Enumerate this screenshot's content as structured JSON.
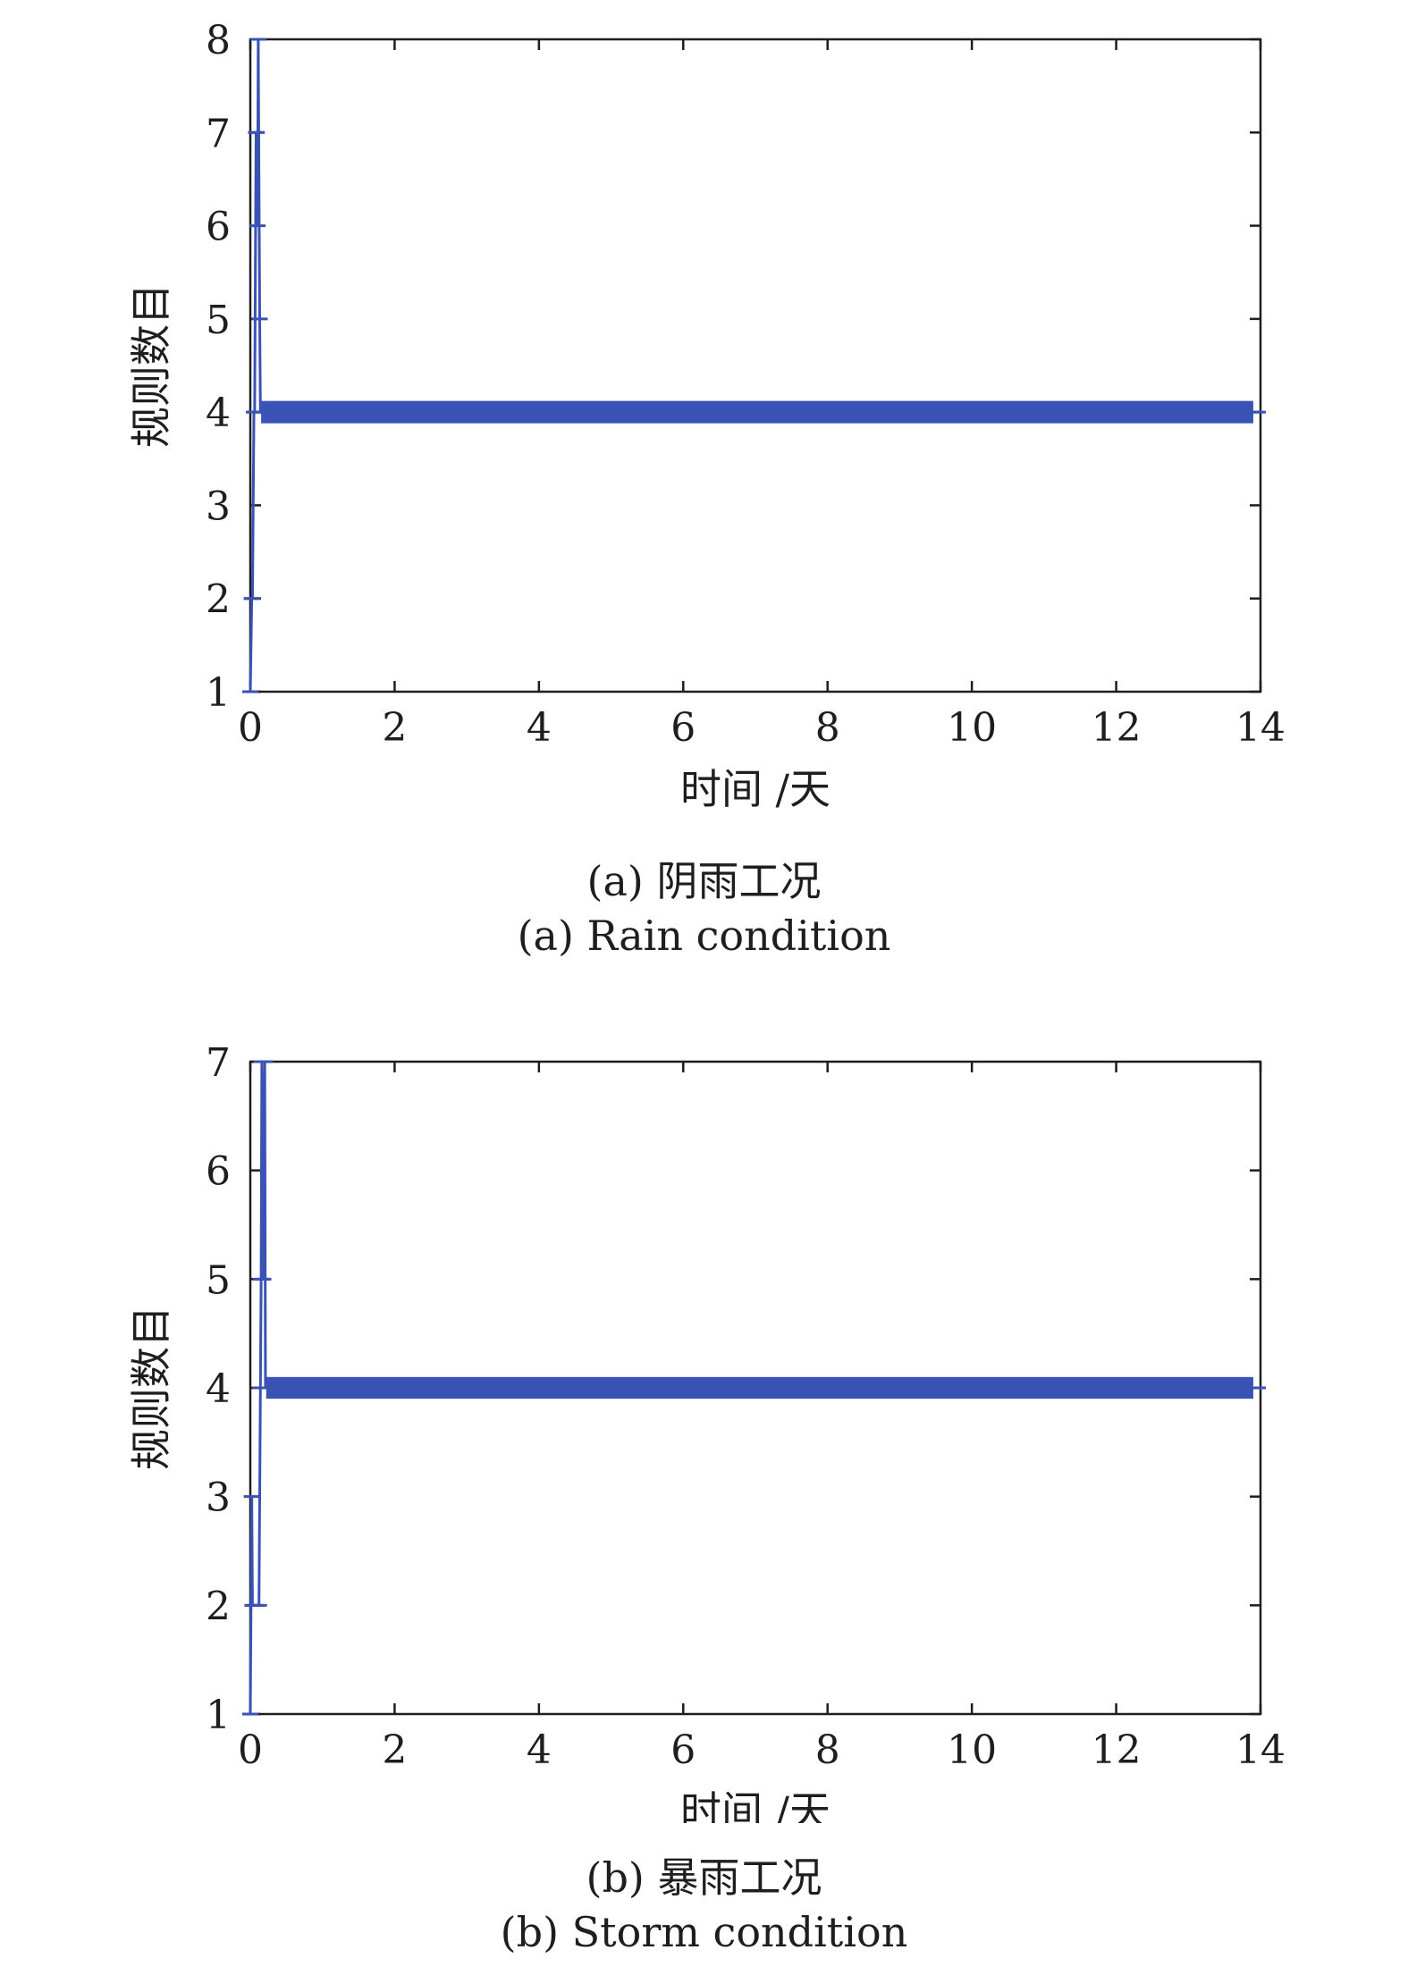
{
  "figures": [
    {
      "caption_cn": "(a) 阴雨工况",
      "caption_en": "(a) Rain condition"
    },
    {
      "caption_cn": "(b) 暴雨工况",
      "caption_en": "(b) Storm condition"
    }
  ],
  "chart_data": [
    {
      "type": "line",
      "title": "",
      "xlabel": "时间 /天",
      "ylabel": "规则数目",
      "xlim": [
        0,
        14
      ],
      "ylim": [
        1,
        8
      ],
      "xticks": [
        0,
        2,
        4,
        6,
        8,
        10,
        12,
        14
      ],
      "yticks": [
        1,
        2,
        3,
        4,
        5,
        6,
        7,
        8
      ],
      "grid": false,
      "color": "#3a52b4",
      "series": [
        {
          "x": [
            0,
            0.02,
            0.03,
            0.05,
            0.06,
            0.08,
            0.09,
            0.1,
            0.11,
            0.13,
            0.14,
            0.15,
            13.9
          ],
          "y": [
            1,
            2,
            2,
            4,
            4,
            7,
            7,
            6,
            8,
            5,
            4,
            4,
            4
          ],
          "band": {
            "x_start": 0.15,
            "x_end": 13.9,
            "y_low": 3.88,
            "y_high": 4.12
          }
        }
      ]
    },
    {
      "type": "line",
      "title": "",
      "xlabel": "时间 /天",
      "ylabel": "规则数目",
      "xlim": [
        0,
        14
      ],
      "ylim": [
        1,
        7
      ],
      "xticks": [
        0,
        2,
        4,
        6,
        8,
        10,
        12,
        14
      ],
      "yticks": [
        1,
        2,
        3,
        4,
        5,
        6,
        7
      ],
      "grid": false,
      "color": "#3a52b4",
      "series": [
        {
          "x": [
            0,
            0.02,
            0.03,
            0.05,
            0.08,
            0.12,
            0.14,
            0.15,
            0.16,
            0.18,
            0.2,
            0.21,
            13.9
          ],
          "y": [
            1,
            3,
            2,
            2,
            2,
            2,
            4,
            5,
            7,
            5,
            7,
            4,
            4
          ],
          "band": {
            "x_start": 0.22,
            "x_end": 13.9,
            "y_low": 3.9,
            "y_high": 4.1
          }
        }
      ]
    }
  ]
}
